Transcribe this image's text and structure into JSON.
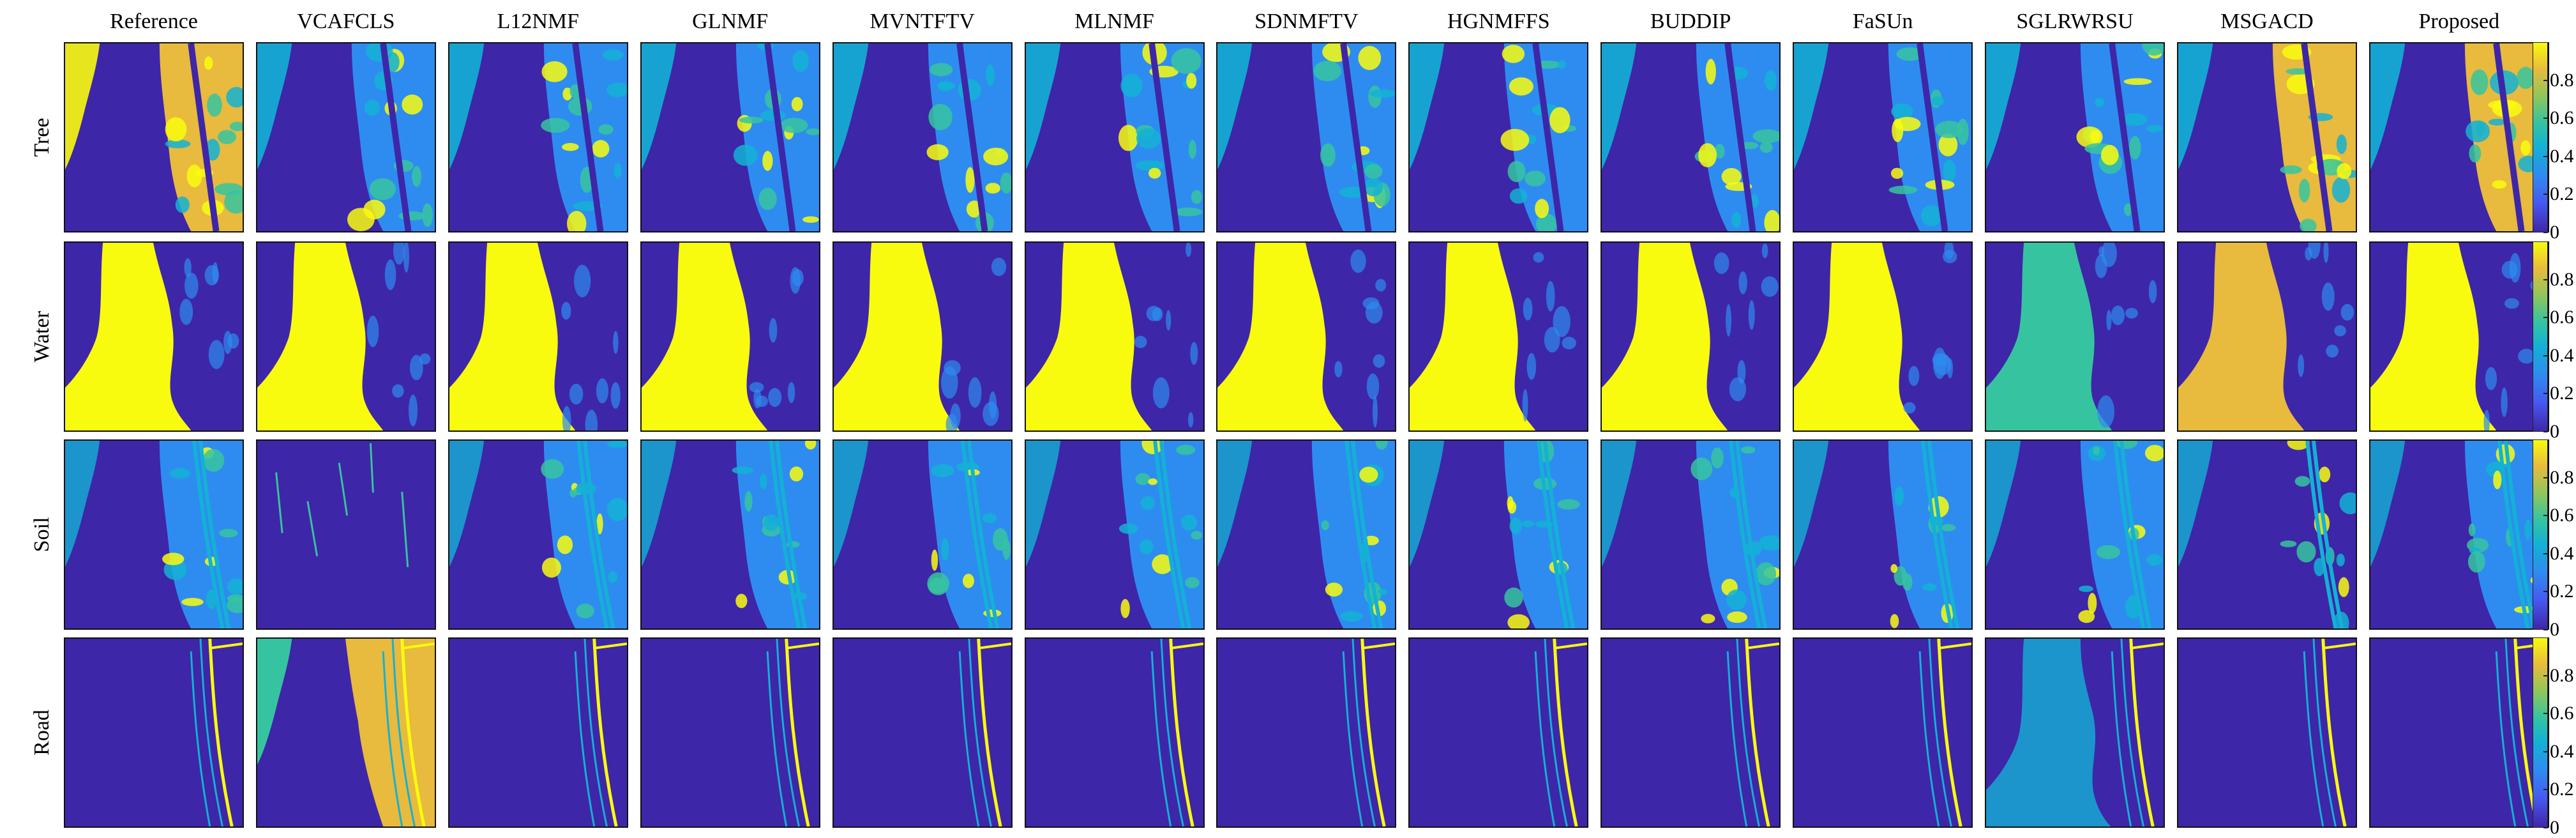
{
  "methods": [
    "Reference",
    "VCAFCLS",
    "L12NMF",
    "GLNMF",
    "MVNTFTV",
    "MLNMF",
    "SDNMFTV",
    "HGNMFFS",
    "BUDDIP",
    "FaSUn",
    "SGLRWRSU",
    "MSGACD",
    "Proposed"
  ],
  "materials": [
    "Tree",
    "Water",
    "Soil",
    "Road"
  ],
  "colorbar": {
    "ticks": [
      "0.8",
      "0.6",
      "0.4",
      "0.2",
      "0"
    ],
    "tick_values": [
      0.8,
      0.6,
      0.4,
      0.2,
      0
    ],
    "range": [
      0,
      1
    ],
    "colormap": "parula"
  },
  "colors": {
    "background_low": "#3e26a8",
    "mid_blue": "#2e8cf0",
    "cyan": "#13b1d5",
    "green": "#36c4a0",
    "orange": "#e8ba3d",
    "high": "#f9fb0e"
  }
}
